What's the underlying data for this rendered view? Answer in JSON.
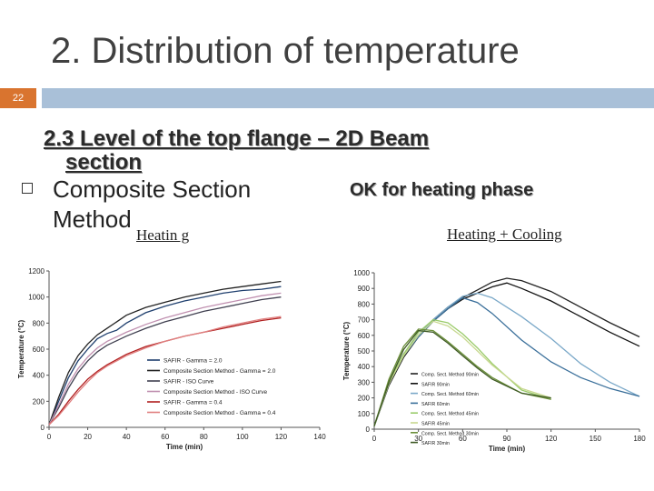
{
  "slide": {
    "title": "2. Distribution of temperature",
    "slide_number": "22",
    "heading_line1": "2.3 Level of the top flange – 2D Beam",
    "heading_line2": "section",
    "bullet_text": "Composite Section Method",
    "heating_label": "Heatin g",
    "ok_text": "OK for heating phase",
    "heating_cooling_label": "Heating + Cooling"
  },
  "chart_data": [
    {
      "type": "line",
      "xlabel": "Time (min)",
      "ylabel": "Temperature (°C)",
      "xlim": [
        0,
        140
      ],
      "ylim": [
        0,
        1200
      ],
      "xticks": [
        0,
        20,
        40,
        60,
        80,
        100,
        120,
        140
      ],
      "yticks": [
        0,
        200,
        400,
        600,
        800,
        1000,
        1200
      ],
      "legend_position": "lower-right",
      "series": [
        {
          "name": "SAFIR - Gamma = 2.0",
          "color": "#1f3f6e",
          "dash": "",
          "x": [
            0,
            5,
            10,
            15,
            20,
            25,
            30,
            35,
            40,
            50,
            60,
            70,
            80,
            90,
            100,
            110,
            120
          ],
          "values": [
            20,
            200,
            380,
            510,
            600,
            680,
            720,
            745,
            800,
            880,
            930,
            970,
            1000,
            1030,
            1050,
            1060,
            1080
          ]
        },
        {
          "name": "Composite Section Method - Gamma = 2.0",
          "color": "#222222",
          "dash": "",
          "x": [
            0,
            5,
            10,
            15,
            20,
            25,
            30,
            35,
            40,
            50,
            60,
            70,
            80,
            90,
            100,
            110,
            120
          ],
          "values": [
            20,
            230,
            420,
            550,
            640,
            710,
            760,
            810,
            860,
            920,
            960,
            1000,
            1030,
            1060,
            1080,
            1100,
            1120
          ]
        },
        {
          "name": "SAFIR - ISO Curve",
          "color": "#404050",
          "dash": "",
          "x": [
            0,
            5,
            10,
            15,
            20,
            25,
            30,
            40,
            50,
            60,
            70,
            80,
            90,
            100,
            110,
            120
          ],
          "values": [
            20,
            150,
            300,
            420,
            510,
            580,
            630,
            700,
            760,
            810,
            850,
            890,
            920,
            950,
            980,
            1000
          ]
        },
        {
          "name": "Composite Section Method - ISO Curve",
          "color": "#c090b0",
          "dash": "",
          "x": [
            0,
            5,
            10,
            15,
            20,
            25,
            30,
            40,
            50,
            60,
            70,
            80,
            90,
            100,
            110,
            120
          ],
          "values": [
            20,
            170,
            330,
            450,
            540,
            610,
            660,
            730,
            790,
            840,
            880,
            920,
            950,
            980,
            1010,
            1030
          ]
        },
        {
          "name": "SAFIR - Gamma = 0.4",
          "color": "#b02020",
          "dash": "",
          "x": [
            0,
            5,
            10,
            15,
            20,
            25,
            30,
            40,
            50,
            60,
            70,
            80,
            90,
            100,
            110,
            120
          ],
          "values": [
            20,
            100,
            200,
            290,
            370,
            430,
            480,
            560,
            620,
            660,
            700,
            730,
            760,
            790,
            820,
            840
          ]
        },
        {
          "name": "Composite Section Method - Gamma = 0.4",
          "color": "#e08080",
          "dash": "",
          "x": [
            0,
            5,
            10,
            15,
            20,
            25,
            30,
            40,
            50,
            60,
            70,
            80,
            90,
            100,
            110,
            120
          ],
          "values": [
            20,
            90,
            180,
            270,
            350,
            420,
            470,
            550,
            610,
            660,
            700,
            730,
            770,
            800,
            830,
            850
          ]
        }
      ]
    },
    {
      "type": "line",
      "xlabel": "Time (min)",
      "ylabel": "Temperature (°C)",
      "xlim": [
        0,
        180
      ],
      "ylim": [
        0,
        1000
      ],
      "xticks": [
        0,
        30,
        60,
        90,
        120,
        150,
        180
      ],
      "yticks": [
        0,
        100,
        200,
        300,
        400,
        500,
        600,
        700,
        800,
        900,
        1000
      ],
      "legend_position": "lower-left",
      "series": [
        {
          "name": "Comp. Sect. Method 90min",
          "color": "#222222",
          "x": [
            0,
            10,
            20,
            30,
            40,
            50,
            60,
            70,
            80,
            90,
            100,
            120,
            140,
            160,
            180
          ],
          "values": [
            20,
            300,
            480,
            600,
            700,
            780,
            840,
            890,
            940,
            965,
            950,
            880,
            780,
            680,
            590
          ]
        },
        {
          "name": "SAFIR 90min",
          "color": "#111111",
          "x": [
            0,
            10,
            20,
            30,
            40,
            50,
            60,
            70,
            80,
            90,
            100,
            120,
            140,
            160,
            180
          ],
          "values": [
            20,
            280,
            460,
            590,
            690,
            770,
            830,
            870,
            910,
            935,
            900,
            820,
            720,
            620,
            530
          ]
        },
        {
          "name": "Comp. Sect. Method 60min",
          "color": "#7aa8c8",
          "x": [
            0,
            10,
            20,
            30,
            40,
            50,
            60,
            70,
            80,
            100,
            120,
            140,
            160,
            180
          ],
          "values": [
            20,
            300,
            480,
            600,
            700,
            780,
            850,
            870,
            840,
            720,
            580,
            420,
            300,
            210
          ]
        },
        {
          "name": "SAFIR 60min",
          "color": "#3a6f9a",
          "x": [
            0,
            10,
            20,
            30,
            40,
            50,
            60,
            70,
            80,
            100,
            120,
            140,
            160,
            180
          ],
          "values": [
            20,
            290,
            470,
            590,
            690,
            770,
            840,
            810,
            740,
            570,
            430,
            330,
            260,
            210
          ]
        },
        {
          "name": "Comp. Sect. Method 45min",
          "color": "#9acb6a",
          "x": [
            0,
            10,
            20,
            30,
            40,
            50,
            60,
            70,
            80,
            100,
            120
          ],
          "values": [
            20,
            300,
            480,
            620,
            700,
            680,
            610,
            520,
            420,
            250,
            190
          ]
        },
        {
          "name": "SAFIR 45min",
          "color": "#c8d890",
          "x": [
            0,
            10,
            20,
            30,
            40,
            50,
            60,
            70,
            80,
            100,
            120
          ],
          "values": [
            20,
            290,
            470,
            600,
            690,
            660,
            590,
            500,
            410,
            260,
            200
          ]
        },
        {
          "name": "Comp. Sect. Method 30min",
          "color": "#6b8f3a",
          "x": [
            0,
            10,
            20,
            30,
            40,
            50,
            60,
            70,
            80,
            100,
            120
          ],
          "values": [
            20,
            320,
            530,
            640,
            630,
            560,
            480,
            400,
            330,
            230,
            190
          ]
        },
        {
          "name": "SAFIR 30min",
          "color": "#3f5a25",
          "x": [
            0,
            10,
            20,
            30,
            40,
            50,
            60,
            70,
            80,
            100,
            120
          ],
          "values": [
            20,
            300,
            510,
            630,
            620,
            550,
            470,
            390,
            320,
            230,
            200
          ]
        }
      ]
    }
  ]
}
